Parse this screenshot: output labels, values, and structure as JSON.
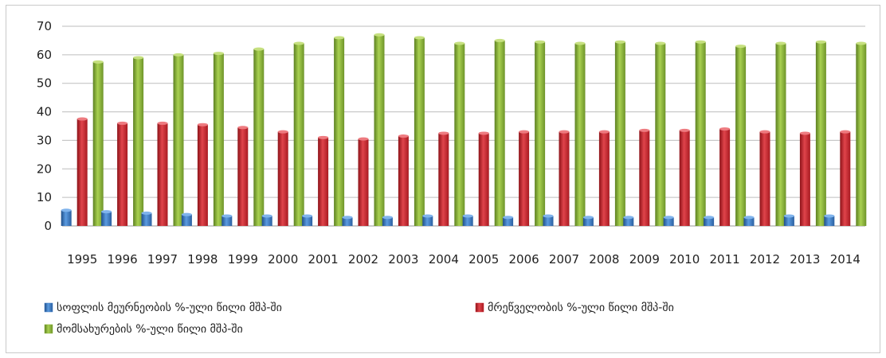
{
  "chart_data": {
    "type": "bar",
    "title": "",
    "xlabel": "",
    "ylabel": "",
    "ylim": [
      0,
      70
    ],
    "yticks": [
      0,
      10,
      20,
      30,
      40,
      50,
      60,
      70
    ],
    "grid": true,
    "legend_position": "bottom",
    "categories": [
      "1995",
      "1996",
      "1997",
      "1998",
      "1999",
      "2000",
      "2001",
      "2002",
      "2003",
      "2004",
      "2005",
      "2006",
      "2007",
      "2008",
      "2009",
      "2010",
      "2011",
      "2012",
      "2013",
      "2014"
    ],
    "series": [
      {
        "name": "სოფლის მეურნეობის %-ული წილი მშპ-ში",
        "color": "#3a78c2",
        "values": [
          5.5,
          5,
          4.5,
          4,
          3.5,
          3.5,
          3.5,
          3,
          3,
          3.5,
          3.5,
          3,
          3.5,
          3,
          3,
          3,
          3,
          3,
          3.5,
          3.5
        ]
      },
      {
        "name": "მრეწველობის %-ული წილი მშპ-ში",
        "color": "#c8232c",
        "values": [
          37.5,
          36,
          36,
          35.5,
          34.5,
          33,
          31,
          30.5,
          31.5,
          32.5,
          32.5,
          33,
          33,
          33,
          33.5,
          33.5,
          34,
          33,
          32.5,
          33
        ]
      },
      {
        "name": "მომსახურების %-ული წილი მშპ-ში",
        "color": "#8cb53a",
        "values": [
          57.5,
          59,
          60,
          60.5,
          62,
          64,
          66,
          67,
          66,
          64,
          65,
          64.5,
          64,
          64.5,
          64,
          64.5,
          63,
          64,
          64.5,
          64
        ]
      }
    ]
  }
}
